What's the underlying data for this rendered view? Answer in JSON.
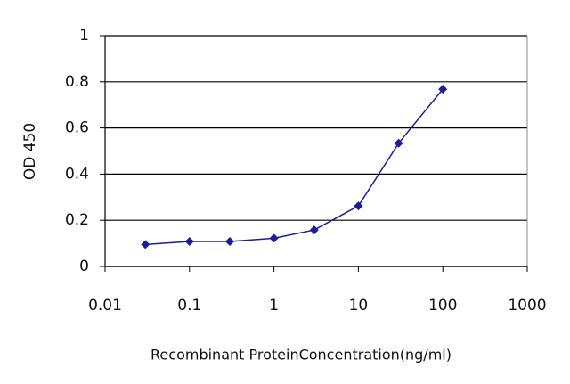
{
  "chart_data": {
    "type": "line",
    "x_label": "Recombinant ProteinConcentration(ng/ml)",
    "y_label": "OD 450",
    "x": [
      0.03,
      0.1,
      0.3,
      1,
      3,
      10,
      30,
      100
    ],
    "series": [
      {
        "color": "#1c1c9c",
        "values": [
          0.095,
          0.108,
          0.108,
          0.122,
          0.158,
          0.262,
          0.534,
          0.768
        ]
      }
    ],
    "xlim": [
      0.01,
      1000
    ],
    "xticks": [
      0.01,
      0.1,
      1,
      10,
      100,
      1000
    ],
    "xlog": true,
    "ylim": [
      0,
      1
    ],
    "yticks": [
      0,
      0.2,
      0.4,
      0.6,
      0.8,
      1
    ],
    "grid": true
  }
}
